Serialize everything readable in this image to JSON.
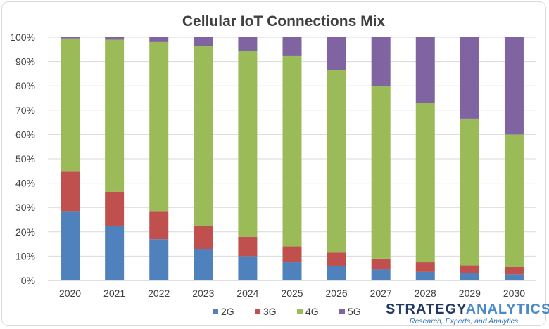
{
  "chart_data": {
    "type": "bar",
    "stacked": true,
    "percent": true,
    "title": "Cellular IoT Connections Mix",
    "xlabel": "",
    "ylabel": "",
    "ylim": [
      0,
      100
    ],
    "yticks": [
      "0%",
      "10%",
      "20%",
      "30%",
      "40%",
      "50%",
      "60%",
      "70%",
      "80%",
      "90%",
      "100%"
    ],
    "categories": [
      "2020",
      "2021",
      "2022",
      "2023",
      "2024",
      "2025",
      "2026",
      "2027",
      "2028",
      "2029",
      "2030"
    ],
    "series": [
      {
        "name": "2G",
        "color": "#4f81bd",
        "values": [
          28.5,
          22.5,
          17,
          13,
          10,
          7.5,
          6,
          4.5,
          3.5,
          3,
          2.5
        ]
      },
      {
        "name": "3G",
        "color": "#c0504d",
        "values": [
          16.5,
          14,
          11.5,
          9.5,
          8,
          6.5,
          5.5,
          4.5,
          4,
          3.2,
          3
        ]
      },
      {
        "name": "4G",
        "color": "#9bbb59",
        "values": [
          54.5,
          62.5,
          69.5,
          74,
          76.5,
          78.5,
          75,
          71,
          65.5,
          60.3,
          54.5
        ]
      },
      {
        "name": "5G",
        "color": "#8064a2",
        "values": [
          0.5,
          1,
          2,
          3.5,
          5.5,
          7.5,
          13.5,
          20,
          27,
          33.5,
          40
        ]
      }
    ],
    "legend_position": "bottom",
    "grid": true
  },
  "brand": {
    "name_part1": "STRATEGY",
    "name_part2": "ANALYTICS",
    "tagline": "Research, Experts, and Analytics"
  }
}
